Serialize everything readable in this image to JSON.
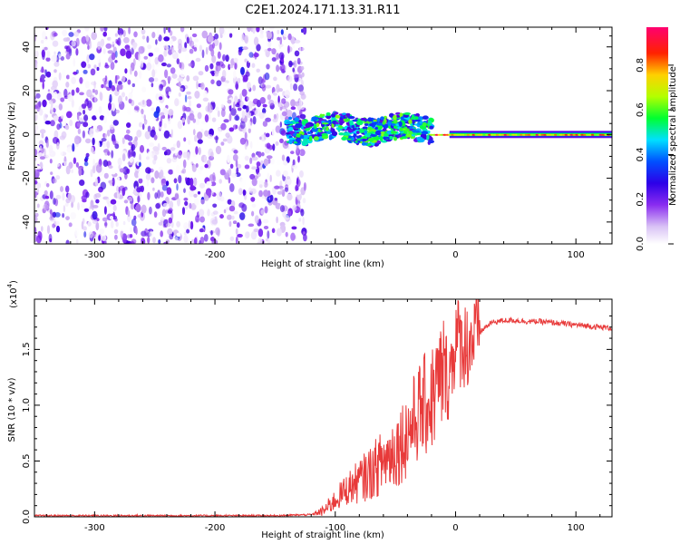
{
  "figure": {
    "title": "C2E1.2024.171.13.31.R11"
  },
  "chart_data": [
    {
      "type": "heatmap",
      "xlabel": "Height of straight line (km)",
      "ylabel": "Frequency (Hz)",
      "xlim": [
        -350,
        130
      ],
      "ylim": [
        -50,
        49
      ],
      "xticks": [
        -300,
        -200,
        -100,
        0,
        100
      ],
      "yticks": [
        -40,
        -20,
        0,
        20,
        40
      ],
      "colorbar": {
        "label": "Normalized spectral amplitude",
        "ticks": [
          "0.0",
          "0.2",
          "0.4",
          "0.6",
          "0.8"
        ],
        "range": [
          0,
          0.97
        ],
        "colormap": [
          "#ffffff",
          "#c9a6f2",
          "#7a1df0",
          "#3a00e0",
          "#0048ff",
          "#00e0ff",
          "#00ff40",
          "#c8ff00",
          "#ffd000",
          "#ff2a00",
          "#ff0066"
        ]
      },
      "features": [
        {
          "x_range": [
            -350,
            -125
          ],
          "y_range": [
            -50,
            49
          ],
          "description_value": 0.25
        },
        {
          "x_range": [
            -140,
            -20
          ],
          "y_range": [
            -5,
            8
          ],
          "description_value": 0.45
        },
        {
          "x_range": [
            -20,
            130
          ],
          "y_range": [
            -1,
            1
          ],
          "description_value": 0.85
        }
      ]
    },
    {
      "type": "line",
      "xlabel": "Height of straight line (km)",
      "ylabel": "SNR (10 * v/v)",
      "ylabel_scale": "(x10",
      "ylabel_exponent": "4",
      "ylabel_scale_close": ")",
      "xlim": [
        -350,
        130
      ],
      "ylim": [
        0,
        1.95
      ],
      "xticks": [
        -300,
        -200,
        -100,
        0,
        100
      ],
      "yticks": [
        "0.0",
        "0.5",
        "1.0",
        "1.5"
      ],
      "color": "#e83a3a",
      "series": [
        {
          "x": [
            -350,
            -300,
            -250,
            -200,
            -150,
            -120,
            -110,
            -100,
            -90,
            -80,
            -70,
            -60,
            -50,
            -40,
            -30,
            -20,
            -10,
            -5,
            0,
            5,
            10,
            15,
            20,
            25,
            30,
            40,
            50,
            60,
            70,
            80,
            90,
            100,
            110,
            120,
            130
          ],
          "values": [
            0.01,
            0.01,
            0.01,
            0.01,
            0.01,
            0.02,
            0.05,
            0.15,
            0.25,
            0.32,
            0.4,
            0.5,
            0.6,
            0.75,
            0.95,
            1.05,
            1.3,
            1.25,
            1.6,
            1.55,
            1.55,
            1.6,
            1.65,
            1.7,
            1.74,
            1.76,
            1.76,
            1.75,
            1.75,
            1.74,
            1.73,
            1.72,
            1.71,
            1.7,
            1.69
          ]
        }
      ]
    }
  ]
}
